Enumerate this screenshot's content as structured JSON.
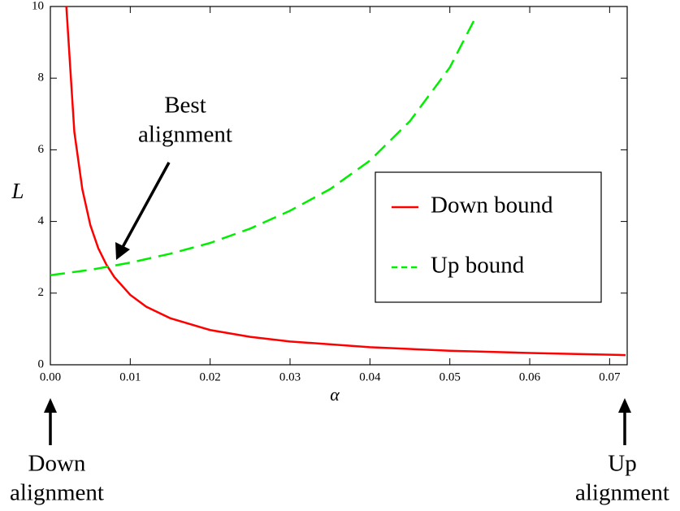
{
  "chart_data": {
    "type": "line",
    "xlabel": "α",
    "ylabel": "L",
    "xlim": [
      0,
      0.0722
    ],
    "ylim": [
      0,
      10
    ],
    "xticks": [
      {
        "value": 0,
        "label": "0.00"
      },
      {
        "value": 0.01,
        "label": "0.01"
      },
      {
        "value": 0.02,
        "label": "0.02"
      },
      {
        "value": 0.03,
        "label": "0.03"
      },
      {
        "value": 0.04,
        "label": "0.04"
      },
      {
        "value": 0.05,
        "label": "0.05"
      },
      {
        "value": 0.06,
        "label": "0.06"
      },
      {
        "value": 0.07,
        "label": "0.07"
      }
    ],
    "yticks": [
      0,
      2,
      4,
      6,
      8,
      10
    ],
    "legend": "right",
    "series": [
      {
        "name": "Down bound",
        "color": "#ff0000",
        "dash": "solid",
        "x": [
          0.002,
          0.003,
          0.004,
          0.005,
          0.006,
          0.007,
          0.008,
          0.01,
          0.012,
          0.015,
          0.02,
          0.025,
          0.03,
          0.04,
          0.05,
          0.06,
          0.07,
          0.072
        ],
        "values": [
          10,
          6.5,
          4.9,
          3.9,
          3.25,
          2.8,
          2.45,
          1.95,
          1.62,
          1.3,
          0.97,
          0.78,
          0.65,
          0.49,
          0.39,
          0.33,
          0.28,
          0.27
        ]
      },
      {
        "name": "Up bound",
        "color": "#00ee00",
        "dash": "dashed",
        "x": [
          0,
          0.005,
          0.01,
          0.015,
          0.02,
          0.025,
          0.03,
          0.035,
          0.04,
          0.045,
          0.05,
          0.053
        ],
        "values": [
          2.5,
          2.65,
          2.85,
          3.1,
          3.4,
          3.8,
          4.3,
          4.9,
          5.7,
          6.8,
          8.3,
          9.6
        ]
      }
    ],
    "annotations": [
      {
        "lines": [
          "Best",
          "alignment"
        ]
      },
      {
        "lines": [
          "Down",
          "alignment"
        ]
      },
      {
        "lines": [
          "Up",
          "alignment"
        ]
      }
    ]
  }
}
